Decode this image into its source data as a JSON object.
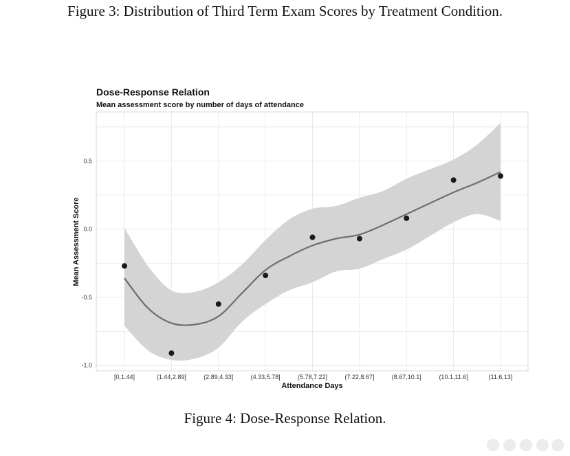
{
  "captions": {
    "top": "Figure 3: Distribution of Third Term Exam Scores by Treatment Condition.",
    "bottom": "Figure 4: Dose-Response Relation."
  },
  "chart_data": {
    "type": "scatter",
    "title": "Dose-Response Relation",
    "subtitle": "Mean assessment score by number of days of attendance",
    "xlabel": "Attendance Days",
    "ylabel": "Mean Assessment Score",
    "categories": [
      "[0,1.44]",
      "(1.44,2.89]",
      "(2.89,4.33]",
      "(4.33,5.78]",
      "(5.78,7.22]",
      "(7.22,8.67]",
      "(8.67,10.1]",
      "(10.1,11.6]",
      "(11.6,13]"
    ],
    "points": [
      -0.27,
      -0.91,
      -0.55,
      -0.34,
      -0.06,
      -0.07,
      0.08,
      0.36,
      0.39
    ],
    "smooth": {
      "t": [
        1,
        1.5,
        2,
        2.5,
        3,
        3.5,
        4,
        4.5,
        5,
        5.5,
        6,
        6.5,
        7,
        7.5,
        8,
        8.5,
        9
      ],
      "fit": [
        -0.36,
        -0.58,
        -0.69,
        -0.7,
        -0.64,
        -0.47,
        -0.3,
        -0.2,
        -0.12,
        -0.07,
        -0.04,
        0.03,
        0.11,
        0.19,
        0.27,
        0.34,
        0.42
      ],
      "lower": [
        -0.71,
        -0.89,
        -0.96,
        -0.95,
        -0.87,
        -0.68,
        -0.55,
        -0.45,
        -0.39,
        -0.31,
        -0.29,
        -0.22,
        -0.15,
        -0.05,
        0.05,
        0.11,
        0.06
      ],
      "upper": [
        0.01,
        -0.27,
        -0.45,
        -0.46,
        -0.39,
        -0.26,
        -0.08,
        0.07,
        0.15,
        0.17,
        0.23,
        0.28,
        0.37,
        0.44,
        0.51,
        0.62,
        0.78
      ]
    },
    "yticks": [
      0.5,
      0.0,
      -0.5,
      -1.0
    ],
    "ytick_labels": [
      "0.5",
      "0.0",
      "-0.5",
      "-1.0"
    ],
    "ylim": [
      -1.04,
      0.86
    ],
    "grid": true,
    "colors": {
      "points": "#1a1a1a",
      "line": "#6e6e6e",
      "band": "#d4d4d4",
      "grid": "#e6e6e6"
    }
  }
}
